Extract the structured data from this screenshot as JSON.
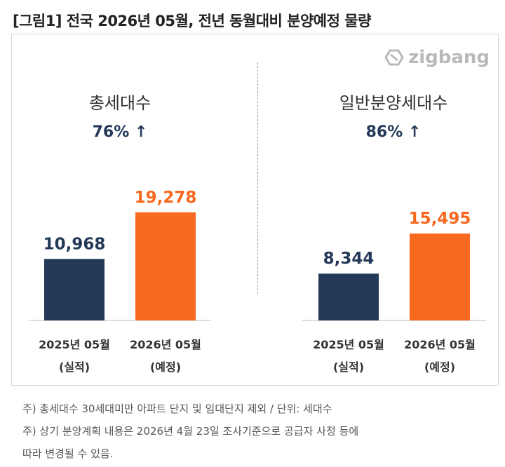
{
  "title": "[그림1] 전국 2026년 05월, 전년 동월대비 분양예정 물량",
  "logo": "zigbang",
  "colors": {
    "navy": "#243858",
    "orange": "#f7691f",
    "change_text": "#243858"
  },
  "chart_data": [
    {
      "type": "bar",
      "title": "총세대수",
      "subtitle": "76% ↑",
      "categories": [
        [
          "2025년 05월",
          "(실적)"
        ],
        [
          "2026년 05월",
          "(예정)"
        ]
      ],
      "values": [
        10968,
        19278
      ],
      "labels": [
        "10,968",
        "19,278"
      ],
      "bar_colors": [
        "#243858",
        "#f7691f"
      ],
      "ylim": [
        0,
        25000
      ],
      "grid": false
    },
    {
      "type": "bar",
      "title": "일반분양세대수",
      "subtitle": "86% ↑",
      "categories": [
        [
          "2025년 05월",
          "(실적)"
        ],
        [
          "2026년 05월",
          "(예정)"
        ]
      ],
      "values": [
        8344,
        15495
      ],
      "labels": [
        "8,344",
        "15,495"
      ],
      "bar_colors": [
        "#243858",
        "#f7691f"
      ],
      "ylim": [
        0,
        25000
      ],
      "grid": false
    }
  ],
  "footnotes": [
    "주) 총세대수 30세대미만 아파트  단지 및 임대단지 제외 / 단위: 세대수",
    "주) 상기 분양계획 내용은 2026년 4월 23일 조사기준으로 공급자 사정 등에",
    "따라 변경될 수 있음."
  ]
}
